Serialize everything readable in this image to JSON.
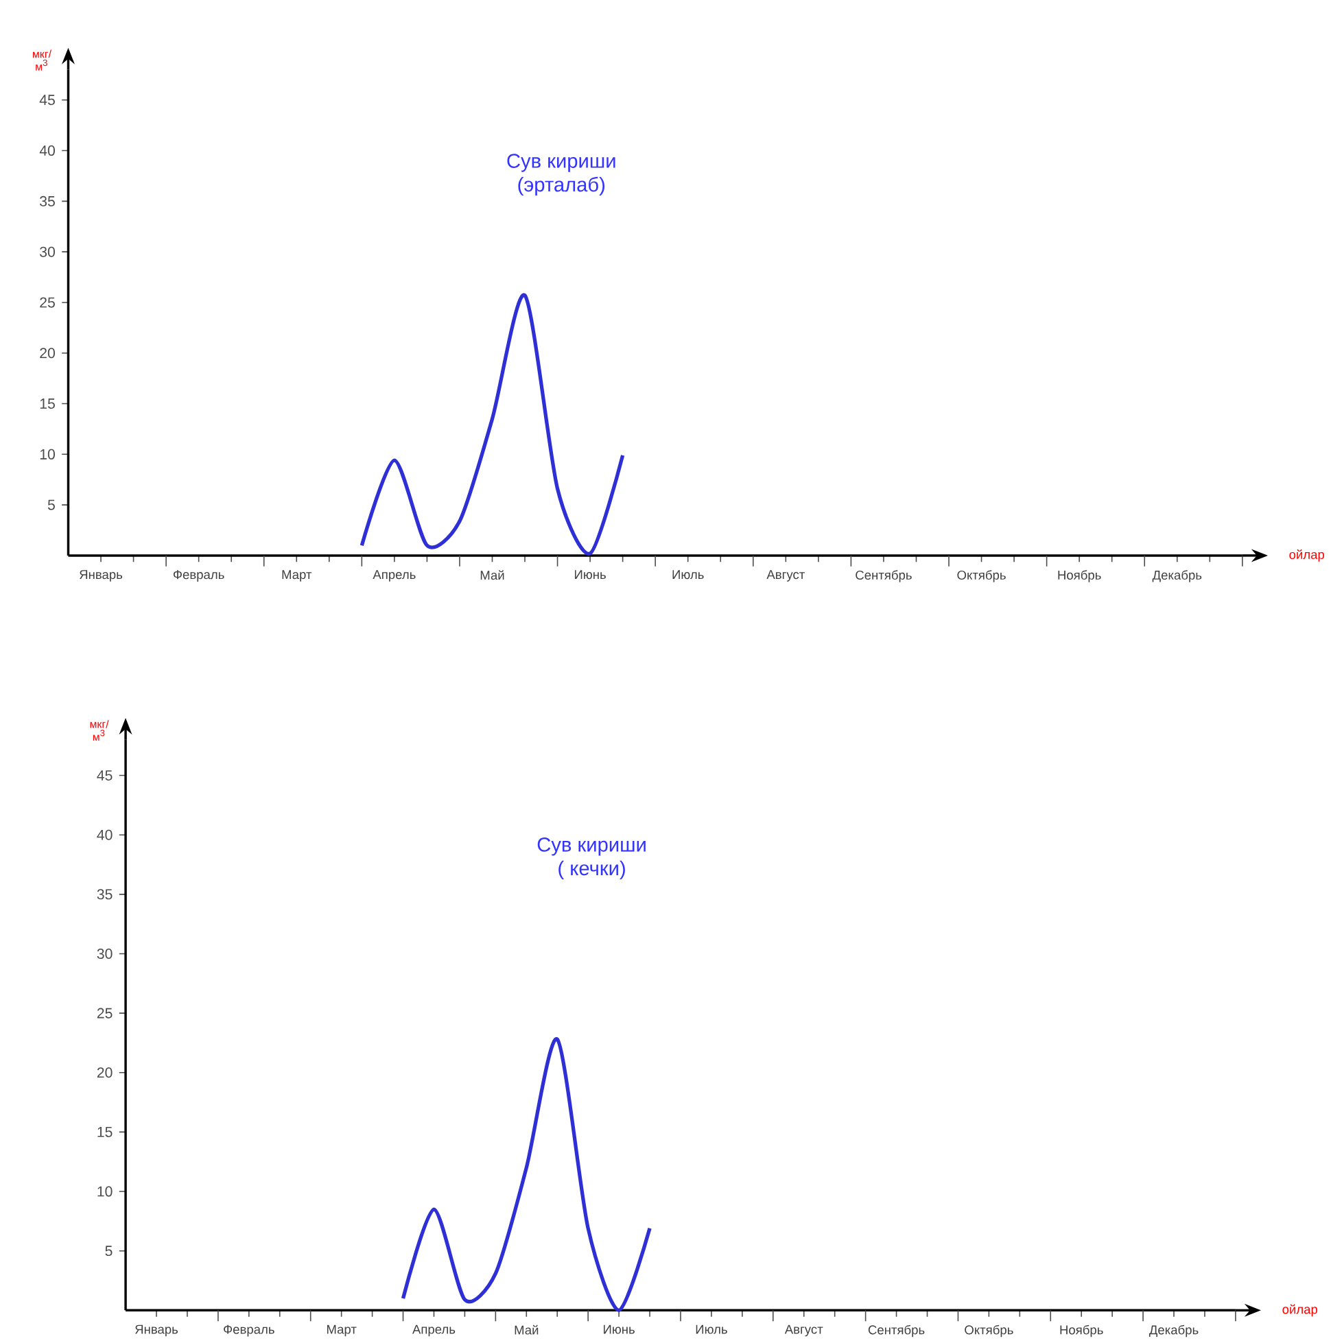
{
  "chart_data": [
    {
      "type": "line",
      "title": "Сув кириши",
      "subtitle": "(эрталаб)",
      "xlabel": "ойлар",
      "ylabel": "мкг/ м$^{3}$",
      "marker": "none",
      "categories": [
        null,
        "Январь",
        null,
        null,
        "Февраль",
        null,
        null,
        "Март",
        null,
        null,
        "Апрель",
        null,
        null,
        "Май",
        null,
        null,
        "Июнь",
        null,
        null,
        "Июль",
        null,
        null,
        "Август",
        null,
        null,
        "Сентябрь",
        null,
        null,
        "Октябрь",
        null,
        null,
        "Ноябрь",
        null,
        null,
        "Декабрь",
        null,
        null
      ],
      "ylim": [
        0,
        48
      ],
      "yticks": [
        5,
        10,
        15,
        20,
        25,
        30,
        35,
        40,
        45
      ],
      "series": [
        {
          "color": "#2f2fd6",
          "values": [
            null,
            null,
            null,
            null,
            null,
            null,
            null,
            null,
            null,
            1.0,
            9.4,
            1.0,
            3.4,
            13.5,
            25.7,
            6.6,
            0.2,
            9.9,
            null,
            null,
            null,
            null,
            null,
            null,
            null,
            null,
            null,
            null,
            null,
            null,
            null,
            null,
            null,
            null,
            null,
            null,
            null
          ]
        }
      ]
    },
    {
      "type": "line",
      "title": "Сув кириши",
      "subtitle": "( кечки)",
      "xlabel": "ойлар",
      "ylabel": "мкг/ м$^{3}$",
      "marker": "none",
      "categories": [
        null,
        "Январь",
        null,
        null,
        "Февраль",
        null,
        null,
        "Март",
        null,
        null,
        "Апрель",
        null,
        null,
        "Май",
        null,
        null,
        "Июнь",
        null,
        null,
        "Июль",
        null,
        null,
        "Август",
        null,
        null,
        "Сентябрь",
        null,
        null,
        "Октябрь",
        null,
        null,
        "Ноябрь",
        null,
        null,
        "Декабрь",
        null,
        null
      ],
      "ylim": [
        0,
        48
      ],
      "yticks": [
        5,
        10,
        15,
        20,
        25,
        30,
        35,
        40,
        45
      ],
      "series": [
        {
          "color": "#2f2fd6",
          "values": [
            null,
            null,
            null,
            null,
            null,
            null,
            null,
            null,
            null,
            1.0,
            8.5,
            0.9,
            3.1,
            12.0,
            22.8,
            6.9,
            0,
            6.9,
            null,
            null,
            null,
            null,
            null,
            null,
            null,
            null,
            null,
            null,
            null,
            null,
            null,
            null,
            null,
            null,
            null,
            null,
            null
          ]
        }
      ]
    }
  ]
}
